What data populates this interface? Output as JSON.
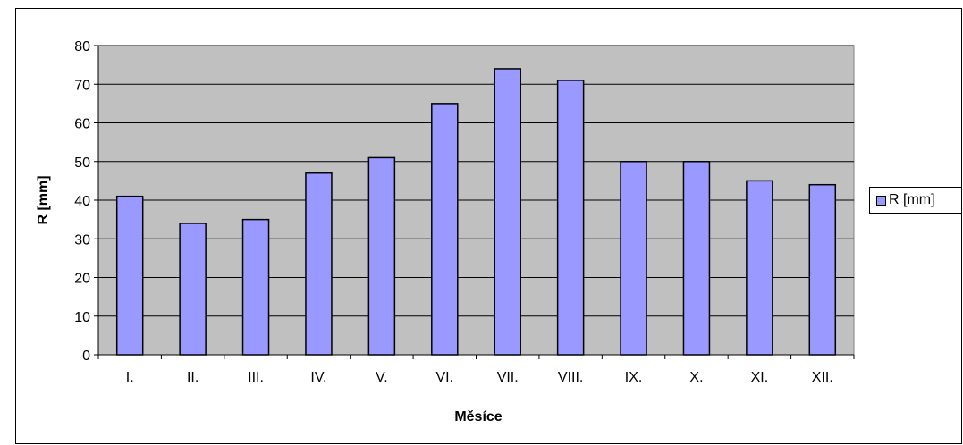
{
  "chart_data": {
    "type": "bar",
    "title": "",
    "xlabel": "Měsíce",
    "ylabel": "R [mm]",
    "categories": [
      "I.",
      "II.",
      "III.",
      "IV.",
      "V.",
      "VI.",
      "VII.",
      "VIII.",
      "IX.",
      "X.",
      "XI.",
      "XII."
    ],
    "series": [
      {
        "name": "R [mm]",
        "values": [
          41,
          34,
          35,
          47,
          51,
          65,
          74,
          71,
          50,
          50,
          45,
          44
        ]
      }
    ],
    "ylim": [
      0,
      80
    ],
    "yticks": [
      "0",
      "10",
      "20",
      "30",
      "40",
      "50",
      "60",
      "70",
      "80"
    ],
    "grid": true,
    "legend": "right",
    "colors": {
      "bar": "#9999ff",
      "plot_background": "#c0c0c0",
      "border": "#000000"
    }
  }
}
